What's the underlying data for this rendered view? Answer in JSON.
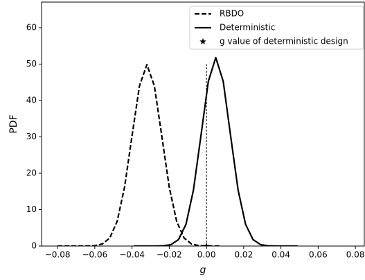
{
  "chart_data": {
    "type": "line",
    "xlabel": "g",
    "ylabel": "PDF",
    "xlim": [
      -0.0886,
      0.0848
    ],
    "ylim": [
      0,
      67.05
    ],
    "xticks": [
      {
        "value": -0.08,
        "label": "−0.08"
      },
      {
        "value": -0.06,
        "label": "−0.06"
      },
      {
        "value": -0.04,
        "label": "−0.04"
      },
      {
        "value": -0.02,
        "label": "−0.02"
      },
      {
        "value": 0,
        "label": "0.00"
      },
      0.02,
      0.04,
      0.06,
      0.08
    ],
    "yticks": [
      0,
      10,
      20,
      30,
      40,
      50,
      60
    ],
    "legend": "upper right",
    "series": [
      {
        "name": "RBDO",
        "color": "#000000",
        "dash": "dashed",
        "x": [
          -0.08,
          -0.076,
          -0.072,
          -0.068,
          -0.064,
          -0.06,
          -0.056,
          -0.052,
          -0.048,
          -0.044,
          -0.04,
          -0.036,
          -0.032,
          -0.028,
          -0.024,
          -0.02,
          -0.016,
          -0.012,
          -0.008,
          -0.004,
          0.0,
          0.004,
          0.008
        ],
        "values": [
          0,
          0,
          0,
          0.002,
          0.017,
          0.109,
          0.554,
          2.19,
          6.75,
          16.19,
          30.25,
          44.01,
          49.87,
          44.01,
          30.25,
          16.19,
          6.75,
          2.19,
          0.554,
          0.109,
          0.017,
          0.002,
          0
        ]
      },
      {
        "name": "Deterministic",
        "color": "#000000",
        "dash": "solid",
        "x": [
          -0.039,
          -0.035,
          -0.031,
          -0.027,
          -0.023,
          -0.019,
          -0.015,
          -0.011,
          -0.007,
          -0.003,
          0.001,
          0.005,
          0.009,
          0.013,
          0.017,
          0.021,
          0.025,
          0.029,
          0.033,
          0.037,
          0.041,
          0.045,
          0.049
        ],
        "values": [
          0,
          0,
          0,
          0.009,
          0.07,
          0.4,
          1.78,
          5.98,
          15.38,
          30.19,
          45.26,
          51.8,
          45.26,
          30.19,
          15.38,
          5.98,
          1.78,
          0.4,
          0.07,
          0.009,
          0,
          0,
          0
        ]
      },
      {
        "name": "g value of deterministic design",
        "color": "#000000",
        "marker": "star",
        "x": [
          0
        ],
        "values": [
          0
        ]
      }
    ],
    "vline": {
      "x": 0,
      "ymin": 0,
      "ymax": 50
    }
  }
}
